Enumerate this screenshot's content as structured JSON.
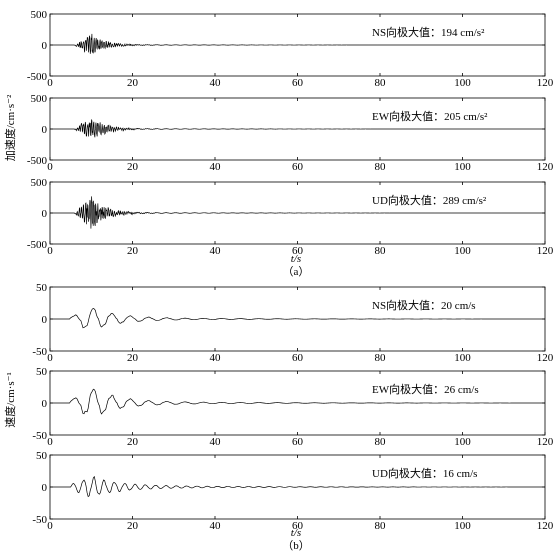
{
  "section_a": {
    "caption": "（a）",
    "ylabel": "加速度/cm·s⁻²",
    "xlabel": "t/s"
  },
  "section_b": {
    "caption": "（b）",
    "ylabel": "速度/cm·s⁻¹",
    "xlabel": "t/s"
  },
  "chart_data": [
    {
      "type": "line",
      "group": "a",
      "annotation": "NS向极大值：194 cm/s²",
      "xlim": [
        0,
        120
      ],
      "ylim": [
        -500,
        500
      ],
      "xticks": [
        0,
        20,
        40,
        60,
        80,
        100,
        120
      ],
      "yticks": [
        -500,
        0,
        500
      ],
      "signal": {
        "peak": 194,
        "peak_time": 10,
        "onset": 6,
        "period": 0.5,
        "tail_amp": 8
      }
    },
    {
      "type": "line",
      "group": "a",
      "annotation": "EW向极大值：205 cm/s²",
      "xlim": [
        0,
        120
      ],
      "ylim": [
        -500,
        500
      ],
      "xticks": [
        0,
        20,
        40,
        60,
        80,
        100,
        120
      ],
      "yticks": [
        -500,
        0,
        500
      ],
      "signal": {
        "peak": 205,
        "peak_time": 10,
        "onset": 6,
        "period": 0.5,
        "tail_amp": 10
      }
    },
    {
      "type": "line",
      "group": "a",
      "annotation": "UD向极大值：289 cm/s²",
      "xlim": [
        0,
        120
      ],
      "ylim": [
        -500,
        500
      ],
      "xticks": [
        0,
        20,
        40,
        60,
        80,
        100,
        120
      ],
      "yticks": [
        -500,
        0,
        500
      ],
      "signal": {
        "peak": 289,
        "peak_time": 10,
        "onset": 6,
        "period": 0.5,
        "tail_amp": 12
      }
    },
    {
      "type": "line",
      "group": "b",
      "annotation": "NS向极大值：20 cm/s",
      "xlim": [
        0,
        120
      ],
      "ylim": [
        -50,
        50
      ],
      "xticks": [
        0,
        20,
        40,
        60,
        80,
        100,
        120
      ],
      "yticks": [
        -50,
        0,
        50
      ],
      "signal": {
        "peak": 20,
        "peak_time": 10,
        "onset": 5,
        "period": 4.5,
        "tail_amp": 3
      }
    },
    {
      "type": "line",
      "group": "b",
      "annotation": "EW向极大值：26 cm/s",
      "xlim": [
        0,
        120
      ],
      "ylim": [
        -50,
        50
      ],
      "xticks": [
        0,
        20,
        40,
        60,
        80,
        100,
        120
      ],
      "yticks": [
        -50,
        0,
        50
      ],
      "signal": {
        "peak": 26,
        "peak_time": 10,
        "onset": 5,
        "period": 4.5,
        "tail_amp": 4
      }
    },
    {
      "type": "line",
      "group": "b",
      "annotation": "UD向极大值：16 cm/s",
      "xlim": [
        0,
        120
      ],
      "ylim": [
        -50,
        50
      ],
      "xticks": [
        0,
        20,
        40,
        60,
        80,
        100,
        120
      ],
      "yticks": [
        -50,
        0,
        50
      ],
      "signal": {
        "peak": 16,
        "peak_time": 10,
        "onset": 5,
        "period": 2.5,
        "tail_amp": 4
      }
    }
  ]
}
